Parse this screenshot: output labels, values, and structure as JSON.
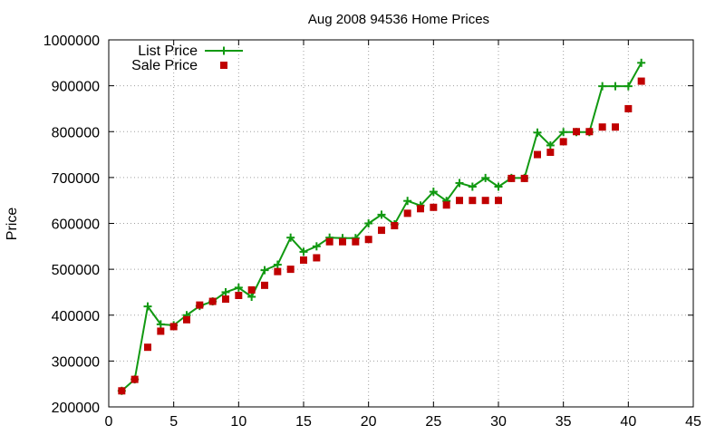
{
  "chart_data": {
    "type": "line",
    "title": "Aug 2008 94536 Home Prices",
    "xlabel": "",
    "ylabel": "Price",
    "xlim": [
      0,
      45
    ],
    "ylim": [
      200000,
      1000000
    ],
    "x_ticks": [
      0,
      5,
      10,
      15,
      20,
      25,
      30,
      35,
      40,
      45
    ],
    "y_ticks": [
      200000,
      300000,
      400000,
      500000,
      600000,
      700000,
      800000,
      900000,
      1000000
    ],
    "grid": true,
    "legend_position": "top-left",
    "series": [
      {
        "name": "List Price",
        "style": "line-with-plus-markers",
        "color": "#119911",
        "x": [
          1,
          2,
          3,
          4,
          5,
          6,
          7,
          8,
          9,
          10,
          11,
          12,
          13,
          14,
          15,
          16,
          17,
          18,
          19,
          20,
          21,
          22,
          23,
          24,
          25,
          26,
          27,
          28,
          29,
          30,
          31,
          32,
          33,
          34,
          35,
          36,
          37,
          38,
          39,
          40,
          41
        ],
        "values": [
          235000,
          260000,
          419000,
          380000,
          378000,
          400000,
          420000,
          430000,
          450000,
          460000,
          440000,
          498000,
          510000,
          569000,
          538000,
          550000,
          569000,
          568000,
          568000,
          600000,
          619000,
          598000,
          649000,
          639000,
          669000,
          649000,
          688000,
          680000,
          699000,
          680000,
          699000,
          699000,
          798000,
          770000,
          799000,
          799000,
          799000,
          899000,
          899000,
          899000,
          950000
        ]
      },
      {
        "name": "Sale Price",
        "style": "square-markers",
        "color": "#c00000",
        "x": [
          1,
          2,
          3,
          4,
          5,
          6,
          7,
          8,
          9,
          10,
          11,
          12,
          13,
          14,
          15,
          16,
          17,
          18,
          19,
          20,
          21,
          22,
          23,
          24,
          25,
          26,
          27,
          28,
          29,
          30,
          31,
          32,
          33,
          34,
          35,
          36,
          37,
          38,
          39,
          40,
          41
        ],
        "values": [
          235000,
          260000,
          330000,
          365000,
          375000,
          390000,
          422000,
          430000,
          435000,
          443000,
          455000,
          465000,
          495000,
          500000,
          520000,
          525000,
          560000,
          560000,
          560000,
          565000,
          585000,
          595000,
          622000,
          632000,
          635000,
          640000,
          650000,
          650000,
          650000,
          650000,
          698000,
          698000,
          750000,
          755000,
          778000,
          800000,
          800000,
          810000,
          810000,
          850000,
          910000
        ]
      }
    ]
  }
}
